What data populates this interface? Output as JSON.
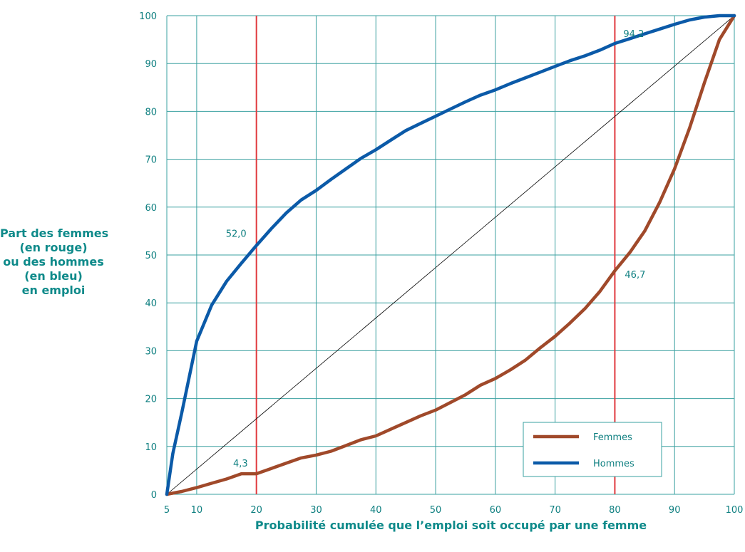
{
  "chart_data": {
    "type": "line",
    "xlabel": "Probabilité cumulée que l’emploi soit occupé par une femme",
    "ylabel_lines": [
      "Part des femmes",
      "(en rouge)",
      "ou des hommes",
      "(en bleu)",
      "en emploi"
    ],
    "xlim": [
      5,
      100
    ],
    "ylim": [
      0,
      100
    ],
    "x_ticks": [
      5,
      10,
      20,
      30,
      40,
      50,
      60,
      70,
      80,
      90,
      100
    ],
    "y_ticks": [
      0,
      10,
      20,
      30,
      40,
      50,
      60,
      70,
      80,
      90,
      100
    ],
    "grid": true,
    "legend_position": "bottom-right",
    "colors": {
      "grid": "#3aa0a0",
      "femmes": "#a0492a",
      "hommes": "#0b5aa8",
      "reference": "#000000",
      "markers": "#e03a3e",
      "text": "#0e7f80"
    },
    "reference_lines_x": [
      20,
      80
    ],
    "series": [
      {
        "name": "Femmes",
        "x": [
          5,
          7.5,
          10,
          12.5,
          15,
          17.5,
          20,
          22.5,
          25,
          27.5,
          30,
          32.5,
          35,
          37.5,
          40,
          42.5,
          45,
          47.5,
          50,
          52.5,
          55,
          57.5,
          60,
          62.5,
          65,
          67.5,
          70,
          72.5,
          75,
          77.5,
          80,
          82.5,
          85,
          87.5,
          90,
          92.5,
          95,
          97.5,
          100
        ],
        "y": [
          0,
          0.6,
          1.4,
          2.3,
          3.2,
          4.3,
          4.3,
          5.4,
          6.5,
          7.6,
          8.2,
          9.0,
          10.2,
          11.4,
          12.2,
          13.6,
          15.0,
          16.4,
          17.6,
          19.2,
          20.8,
          22.8,
          24.2,
          26.0,
          28.0,
          30.6,
          33.0,
          35.8,
          38.8,
          42.4,
          46.7,
          50.5,
          55.0,
          61.0,
          68.0,
          76.5,
          86.0,
          95.0,
          100
        ]
      },
      {
        "name": "Hommes",
        "x": [
          5,
          6,
          7.5,
          10,
          12.5,
          15,
          17.5,
          20,
          22.5,
          25,
          27.5,
          30,
          32.5,
          35,
          37.5,
          40,
          42.5,
          45,
          47.5,
          50,
          52.5,
          55,
          57.5,
          60,
          62.5,
          65,
          67.5,
          70,
          72.5,
          75,
          77.5,
          80,
          82.5,
          85,
          87.5,
          90,
          92.5,
          95,
          97.5,
          100
        ],
        "y": [
          0,
          8.5,
          17.0,
          32.0,
          39.5,
          44.5,
          48.3,
          52.0,
          55.5,
          58.8,
          61.5,
          63.5,
          65.8,
          68.0,
          70.2,
          72.0,
          74.0,
          76.0,
          77.5,
          79.0,
          80.5,
          82.0,
          83.4,
          84.5,
          85.8,
          87.0,
          88.2,
          89.4,
          90.6,
          91.6,
          92.8,
          94.2,
          95.2,
          96.2,
          97.2,
          98.2,
          99.1,
          99.7,
          100.0,
          100
        ]
      }
    ],
    "annotations": [
      {
        "text": "52,0",
        "x": 20,
        "y": 52.0
      },
      {
        "text": "94,2",
        "x": 80,
        "y": 94.2
      },
      {
        "text": "4,3",
        "x": 20,
        "y": 4.3
      },
      {
        "text": "46,7",
        "x": 80,
        "y": 46.7
      }
    ],
    "legend": [
      "Femmes",
      "Hommes"
    ]
  }
}
